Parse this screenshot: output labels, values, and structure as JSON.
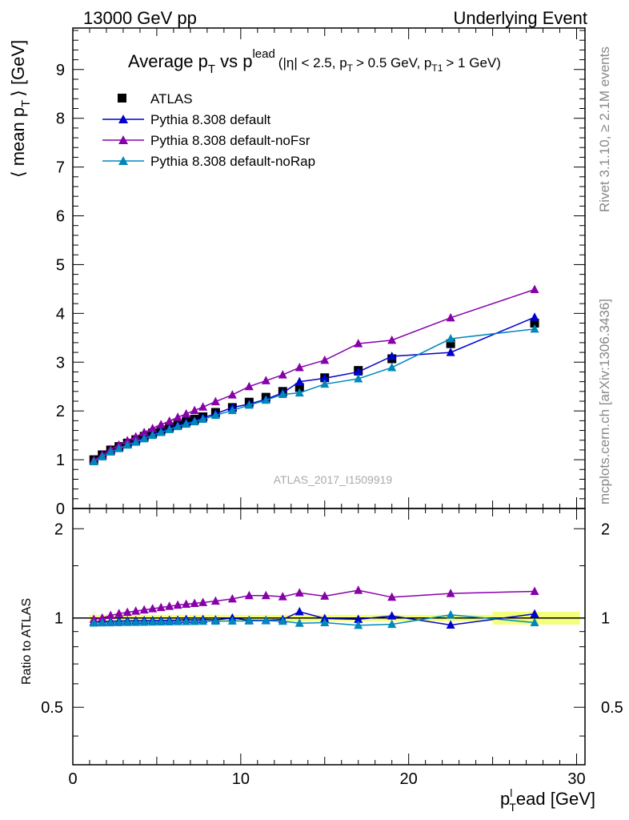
{
  "header": {
    "left": "13000 GeV pp",
    "right": "Underlying Event"
  },
  "side": {
    "rivet": "Rivet 3.1.10, ≥ 2.1M events",
    "mcplots": "mcplots.cern.ch [arXiv:1306.3436]"
  },
  "chart_data": [
    {
      "type": "scatter",
      "title": {
        "main": "Average p",
        "sub_T": "T",
        "vs": "vs p",
        "sup_lead": "lead",
        "cuts": "(|η| < 2.5, p",
        "cuts2": "> 0.5 GeV, p",
        "cuts_sub": "T1",
        "cuts3": "> 1 GeV)"
      },
      "watermark": "ATLAS_2017_I1509919",
      "ylabel": "⟨ mean p",
      "ylabel_sub": "T",
      "ylabel_unit": "⟩ [GeV]",
      "xlabel_p": "p",
      "xlabel_sub": "T",
      "xlabel_sup": "l",
      "xlabel_rest": "ead [GeV]",
      "xlim": [
        0,
        30.5
      ],
      "ylim": [
        0,
        9.85
      ],
      "yticks": [
        0,
        1,
        2,
        3,
        4,
        5,
        6,
        7,
        8,
        9
      ],
      "legend_position": "top-left",
      "series": [
        {
          "name": "ATLAS",
          "marker": "square",
          "color": "#000000",
          "x": [
            1.25,
            1.75,
            2.25,
            2.75,
            3.25,
            3.75,
            4.25,
            4.75,
            5.25,
            5.75,
            6.25,
            6.75,
            7.25,
            7.75,
            8.5,
            9.5,
            10.5,
            11.5,
            12.5,
            13.5,
            15.0,
            17.0,
            19.0,
            22.5,
            27.5
          ],
          "y": [
            1.0,
            1.1,
            1.2,
            1.27,
            1.34,
            1.41,
            1.48,
            1.55,
            1.61,
            1.67,
            1.73,
            1.78,
            1.83,
            1.88,
            1.97,
            2.07,
            2.18,
            2.28,
            2.4,
            2.48,
            2.68,
            2.83,
            3.07,
            3.38,
            3.8
          ]
        },
        {
          "name": "Pythia 8.308 default",
          "marker": "triangle",
          "color": "#0000cc",
          "x": [
            1.25,
            1.75,
            2.25,
            2.75,
            3.25,
            3.75,
            4.25,
            4.75,
            5.25,
            5.75,
            6.25,
            6.75,
            7.25,
            7.75,
            8.5,
            9.5,
            10.5,
            11.5,
            12.5,
            13.5,
            15.0,
            17.0,
            19.0,
            22.5,
            27.5
          ],
          "y": [
            0.97,
            1.07,
            1.17,
            1.24,
            1.31,
            1.38,
            1.45,
            1.52,
            1.58,
            1.64,
            1.7,
            1.76,
            1.8,
            1.86,
            1.94,
            2.07,
            2.14,
            2.24,
            2.37,
            2.6,
            2.67,
            2.8,
            3.12,
            3.2,
            3.92
          ]
        },
        {
          "name": "Pythia 8.308 default-noFsr",
          "marker": "triangle",
          "color": "#8800aa",
          "x": [
            1.25,
            1.75,
            2.25,
            2.75,
            3.25,
            3.75,
            4.25,
            4.75,
            5.25,
            5.75,
            6.25,
            6.75,
            7.25,
            7.75,
            8.5,
            9.5,
            10.5,
            11.5,
            12.5,
            13.5,
            15.0,
            17.0,
            19.0,
            22.5,
            27.5
          ],
          "y": [
            0.99,
            1.1,
            1.21,
            1.3,
            1.39,
            1.47,
            1.56,
            1.64,
            1.72,
            1.79,
            1.87,
            1.94,
            2.01,
            2.08,
            2.19,
            2.33,
            2.5,
            2.62,
            2.74,
            2.89,
            3.04,
            3.38,
            3.45,
            3.91,
            4.49
          ]
        },
        {
          "name": "Pythia 8.308 default-noRap",
          "marker": "triangle",
          "color": "#0088bb",
          "x": [
            1.25,
            1.75,
            2.25,
            2.75,
            3.25,
            3.75,
            4.25,
            4.75,
            5.25,
            5.75,
            6.25,
            6.75,
            7.25,
            7.75,
            8.5,
            9.5,
            10.5,
            11.5,
            12.5,
            13.5,
            15.0,
            17.0,
            19.0,
            22.5,
            27.5
          ],
          "y": [
            0.96,
            1.06,
            1.16,
            1.23,
            1.3,
            1.36,
            1.43,
            1.5,
            1.56,
            1.62,
            1.68,
            1.73,
            1.78,
            1.83,
            1.91,
            2.01,
            2.12,
            2.22,
            2.34,
            2.37,
            2.55,
            2.66,
            2.89,
            3.48,
            3.68
          ]
        }
      ]
    },
    {
      "type": "line",
      "ylabel": "Ratio to ATLAS",
      "xlim": [
        0,
        30.5
      ],
      "ylim": [
        0.32,
        2.34
      ],
      "yticks": [
        0.5,
        1,
        2
      ],
      "ytick_labels": [
        "0.5",
        "1",
        "2"
      ],
      "xticks": [
        0,
        10,
        20,
        30
      ],
      "xtick_labels": [
        "0",
        "10",
        "20",
        "30"
      ],
      "band_color": "#f4ff7a",
      "series": [
        {
          "name": "Pythia 8.308 default",
          "color": "#0000cc",
          "x": [
            1.25,
            1.75,
            2.25,
            2.75,
            3.25,
            3.75,
            4.25,
            4.75,
            5.25,
            5.75,
            6.25,
            6.75,
            7.25,
            7.75,
            8.5,
            9.5,
            10.5,
            11.5,
            12.5,
            13.5,
            15.0,
            17.0,
            19.0,
            22.5,
            27.5
          ],
          "y": [
            0.97,
            0.97,
            0.975,
            0.977,
            0.978,
            0.979,
            0.98,
            0.981,
            0.981,
            0.982,
            0.983,
            0.989,
            0.984,
            0.989,
            0.985,
            1.0,
            0.982,
            0.982,
            0.988,
            1.05,
            0.996,
            0.99,
            1.016,
            0.947,
            1.032
          ]
        },
        {
          "name": "Pythia 8.308 default-noFsr",
          "color": "#8800aa",
          "x": [
            1.25,
            1.75,
            2.25,
            2.75,
            3.25,
            3.75,
            4.25,
            4.75,
            5.25,
            5.75,
            6.25,
            6.75,
            7.25,
            7.75,
            8.5,
            9.5,
            10.5,
            11.5,
            12.5,
            13.5,
            15.0,
            17.0,
            19.0,
            22.5,
            27.5
          ],
          "y": [
            0.99,
            1.0,
            1.02,
            1.035,
            1.045,
            1.055,
            1.065,
            1.075,
            1.085,
            1.095,
            1.105,
            1.113,
            1.12,
            1.128,
            1.14,
            1.16,
            1.19,
            1.19,
            1.18,
            1.215,
            1.185,
            1.24,
            1.175,
            1.21,
            1.23
          ]
        },
        {
          "name": "Pythia 8.308 default-noRap",
          "color": "#0088bb",
          "x": [
            1.25,
            1.75,
            2.25,
            2.75,
            3.25,
            3.75,
            4.25,
            4.75,
            5.25,
            5.75,
            6.25,
            6.75,
            7.25,
            7.75,
            8.5,
            9.5,
            10.5,
            11.5,
            12.5,
            13.5,
            15.0,
            17.0,
            19.0,
            22.5,
            27.5
          ],
          "y": [
            0.962,
            0.963,
            0.964,
            0.965,
            0.966,
            0.967,
            0.968,
            0.969,
            0.97,
            0.971,
            0.972,
            0.973,
            0.974,
            0.975,
            0.976,
            0.977,
            0.978,
            0.979,
            0.975,
            0.96,
            0.965,
            0.945,
            0.952,
            1.025,
            0.965
          ]
        }
      ]
    }
  ]
}
